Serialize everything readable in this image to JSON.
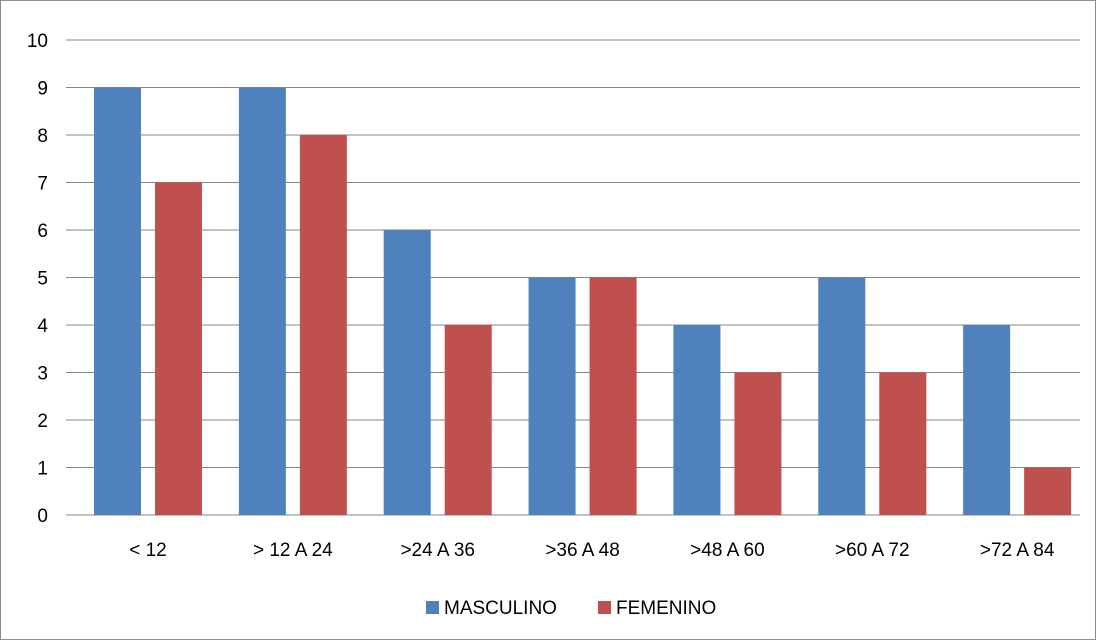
{
  "chart_data": {
    "type": "bar",
    "title": "",
    "xlabel": "",
    "ylabel": "",
    "categories": [
      "< 12",
      "> 12 A 24",
      ">24 A 36",
      ">36 A 48",
      ">48 A 60",
      ">60 A 72",
      ">72 A 84"
    ],
    "series": [
      {
        "name": "MASCULINO",
        "color": "#4f81bd",
        "values": [
          9,
          9,
          6,
          5,
          4,
          5,
          4
        ]
      },
      {
        "name": "FEMENINO",
        "color": "#c0504d",
        "values": [
          7,
          8,
          4,
          5,
          3,
          3,
          1
        ]
      }
    ],
    "ylim": [
      0,
      10
    ],
    "yticks": [
      0,
      1,
      2,
      3,
      4,
      5,
      6,
      7,
      8,
      9,
      10
    ],
    "grid": true,
    "legend_position": "bottom"
  }
}
